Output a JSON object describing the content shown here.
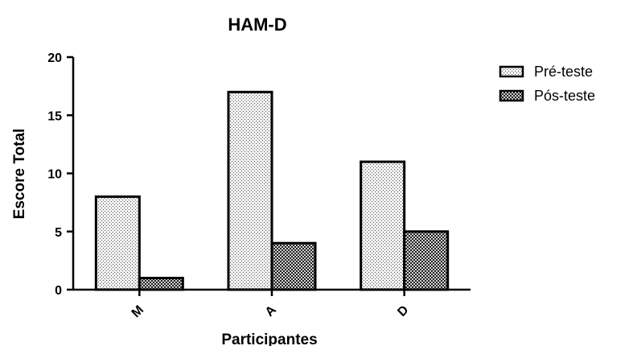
{
  "chart_data": {
    "type": "bar",
    "title": "HAM-D",
    "xlabel": "Participantes",
    "ylabel": "Escore Total",
    "categories": [
      "M",
      "A",
      "D"
    ],
    "series": [
      {
        "name": "Pré-teste",
        "values": [
          8,
          17,
          11
        ],
        "pattern": "fine-dots"
      },
      {
        "name": "Pós-teste",
        "values": [
          1,
          4,
          5
        ],
        "pattern": "dense-crosshatch"
      }
    ],
    "ylim": [
      0,
      20
    ],
    "yticks": [
      0,
      5,
      10,
      15,
      20
    ],
    "grid": false,
    "legend_position": "top-right",
    "colors": {
      "bar_stroke": "#000000",
      "pre_fill": "#f0f0f0",
      "post_fill": "#bfbfbf",
      "axis": "#000000"
    }
  }
}
